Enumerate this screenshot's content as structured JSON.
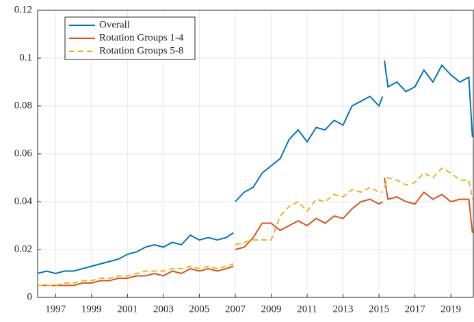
{
  "chart_data": {
    "type": "line",
    "x": [
      1996.0,
      1996.5,
      1997.0,
      1997.5,
      1998.0,
      1998.5,
      1999.0,
      1999.5,
      2000.0,
      2000.5,
      2001.0,
      2001.5,
      2002.0,
      2002.5,
      2003.0,
      2003.5,
      2004.0,
      2004.5,
      2005.0,
      2005.5,
      2006.0,
      2006.5,
      2006.9,
      2006.95,
      2007.0,
      2007.5,
      2008.0,
      2008.5,
      2009.0,
      2009.5,
      2010.0,
      2010.5,
      2011.0,
      2011.5,
      2012.0,
      2012.5,
      2013.0,
      2013.5,
      2014.0,
      2014.5,
      2015.0,
      2015.2,
      2015.25,
      2015.3,
      2015.5,
      2016.0,
      2016.5,
      2017.0,
      2017.5,
      2018.0,
      2018.5,
      2019.0,
      2019.5,
      2020.0,
      2020.2
    ],
    "series": [
      {
        "name": "Overall",
        "color": "#0072bd",
        "dashed": false,
        "values": [
          0.01,
          0.011,
          0.01,
          0.011,
          0.011,
          0.012,
          0.013,
          0.014,
          0.015,
          0.016,
          0.018,
          0.019,
          0.021,
          0.022,
          0.021,
          0.023,
          0.022,
          0.026,
          0.024,
          0.025,
          0.024,
          0.025,
          0.027,
          null,
          0.04,
          0.044,
          0.046,
          0.052,
          0.055,
          0.058,
          0.066,
          0.07,
          0.065,
          0.071,
          0.07,
          0.074,
          0.072,
          0.08,
          0.082,
          0.084,
          0.08,
          0.084,
          null,
          0.099,
          0.088,
          0.09,
          0.086,
          0.088,
          0.095,
          0.09,
          0.097,
          0.093,
          0.09,
          0.092,
          0.067
        ]
      },
      {
        "name": "Rotation Groups 1-4",
        "color": "#d95319",
        "dashed": false,
        "values": [
          0.005,
          0.005,
          0.005,
          0.005,
          0.005,
          0.006,
          0.006,
          0.007,
          0.007,
          0.008,
          0.008,
          0.009,
          0.009,
          0.01,
          0.009,
          0.011,
          0.01,
          0.012,
          0.011,
          0.012,
          0.011,
          0.012,
          0.013,
          null,
          0.02,
          0.021,
          0.025,
          0.031,
          0.031,
          0.028,
          0.03,
          0.032,
          0.03,
          0.033,
          0.031,
          0.034,
          0.033,
          0.037,
          0.04,
          0.041,
          0.039,
          0.04,
          null,
          0.05,
          0.041,
          0.042,
          0.04,
          0.039,
          0.044,
          0.041,
          0.043,
          0.04,
          0.041,
          0.041,
          0.027
        ]
      },
      {
        "name": "Rotation Groups 5-8",
        "color": "#edb120",
        "dashed": true,
        "values": [
          0.005,
          0.005,
          0.005,
          0.006,
          0.006,
          0.007,
          0.007,
          0.008,
          0.008,
          0.009,
          0.009,
          0.01,
          0.011,
          0.011,
          0.011,
          0.012,
          0.012,
          0.013,
          0.012,
          0.013,
          0.012,
          0.013,
          0.014,
          null,
          0.022,
          0.023,
          0.024,
          0.024,
          0.024,
          0.034,
          0.038,
          0.04,
          0.036,
          0.041,
          0.04,
          0.043,
          0.042,
          0.045,
          0.044,
          0.046,
          0.044,
          0.044,
          null,
          0.046,
          0.05,
          0.049,
          0.047,
          0.048,
          0.052,
          0.05,
          0.054,
          0.052,
          0.049,
          0.049,
          0.041
        ]
      }
    ],
    "xlim": [
      1996,
      2020.25
    ],
    "xticks": [
      1997,
      1999,
      2001,
      2003,
      2005,
      2007,
      2009,
      2011,
      2013,
      2015,
      2017,
      2019
    ],
    "ylim": [
      0,
      0.12
    ],
    "yticks": [
      0,
      0.02,
      0.04,
      0.06,
      0.08,
      0.1,
      0.12
    ],
    "grid": true,
    "legend": "upper left"
  }
}
